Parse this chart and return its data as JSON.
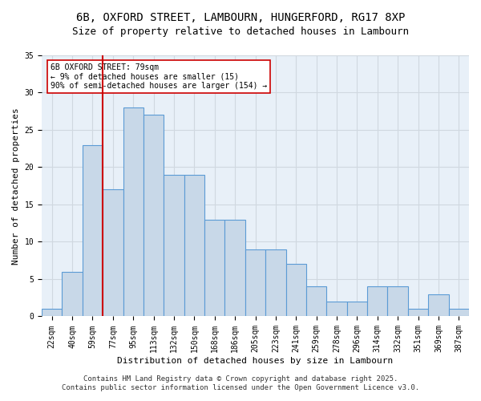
{
  "title_line1": "6B, OXFORD STREET, LAMBOURN, HUNGERFORD, RG17 8XP",
  "title_line2": "Size of property relative to detached houses in Lambourn",
  "xlabel": "Distribution of detached houses by size in Lambourn",
  "ylabel": "Number of detached properties",
  "categories": [
    "22sqm",
    "40sqm",
    "59sqm",
    "77sqm",
    "95sqm",
    "113sqm",
    "132sqm",
    "150sqm",
    "168sqm",
    "186sqm",
    "205sqm",
    "223sqm",
    "241sqm",
    "259sqm",
    "278sqm",
    "296sqm",
    "314sqm",
    "332sqm",
    "351sqm",
    "369sqm",
    "387sqm"
  ],
  "bar_heights": [
    1,
    6,
    23,
    17,
    28,
    27,
    19,
    19,
    13,
    13,
    9,
    9,
    7,
    4,
    2,
    2,
    4,
    4,
    1,
    3,
    1
  ],
  "bar_color": "#c8d8e8",
  "bar_edge_color": "#5b9bd5",
  "vline_x_index": 2.5,
  "vline_color": "#cc0000",
  "annotation_text": "6B OXFORD STREET: 79sqm\n← 9% of detached houses are smaller (15)\n90% of semi-detached houses are larger (154) →",
  "annotation_box_color": "#ffffff",
  "annotation_box_edge": "#cc0000",
  "ylim": [
    0,
    35
  ],
  "yticks": [
    0,
    5,
    10,
    15,
    20,
    25,
    30,
    35
  ],
  "grid_color": "#d0d8e0",
  "bg_color": "#e8f0f8",
  "footer_line1": "Contains HM Land Registry data © Crown copyright and database right 2025.",
  "footer_line2": "Contains public sector information licensed under the Open Government Licence v3.0.",
  "title_fontsize": 10,
  "subtitle_fontsize": 9,
  "axis_label_fontsize": 8,
  "tick_fontsize": 7,
  "footer_fontsize": 6.5
}
